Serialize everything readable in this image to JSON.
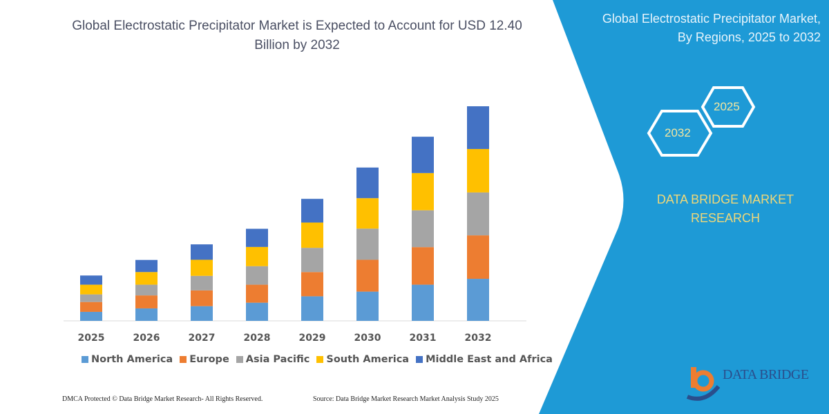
{
  "chart_data": {
    "type": "bar",
    "stacked": true,
    "title": "Global Electrostatic Precipitator Market is Expected to Account for USD 12.40 Billion by 2032",
    "categories": [
      "2025",
      "2026",
      "2027",
      "2028",
      "2029",
      "2030",
      "2031",
      "2032"
    ],
    "series": [
      {
        "name": "North America",
        "color": "#5b9bd5",
        "values": [
          0.52,
          0.72,
          0.85,
          1.05,
          1.42,
          1.69,
          2.09,
          2.43
        ]
      },
      {
        "name": "Europe",
        "color": "#ed7d31",
        "values": [
          0.57,
          0.75,
          0.91,
          1.04,
          1.4,
          1.84,
          2.17,
          2.51
        ]
      },
      {
        "name": "Asia Pacific",
        "color": "#a5a5a5",
        "values": [
          0.44,
          0.62,
          0.84,
          1.07,
          1.4,
          1.8,
          2.13,
          2.48
        ]
      },
      {
        "name": "South America",
        "color": "#ffc000",
        "values": [
          0.56,
          0.73,
          0.93,
          1.11,
          1.46,
          1.76,
          2.15,
          2.51
        ]
      },
      {
        "name": "Middle East and Africa",
        "color": "#4472c4",
        "values": [
          0.53,
          0.7,
          0.89,
          1.05,
          1.37,
          1.77,
          2.1,
          2.47
        ]
      }
    ],
    "ylim": [
      0,
      12.4
    ],
    "grid": false,
    "y_axis_shown": false,
    "legend_position": "bottom"
  },
  "side_panel": {
    "title": "Global Electrostatic Precipitator Market, By Regions, 2025 to 2032",
    "hex_start": "2025",
    "hex_end": "2032",
    "brand": "DATA BRIDGE MARKET RESEARCH",
    "logo_text": "DATA BRIDGE",
    "color": "#1e9ad6"
  },
  "footer": {
    "left": "DMCA Protected © Data Bridge Market Research-  All Rights Reserved.",
    "right": "Source: Data Bridge Market Research  Market Analysis Study 2025"
  }
}
